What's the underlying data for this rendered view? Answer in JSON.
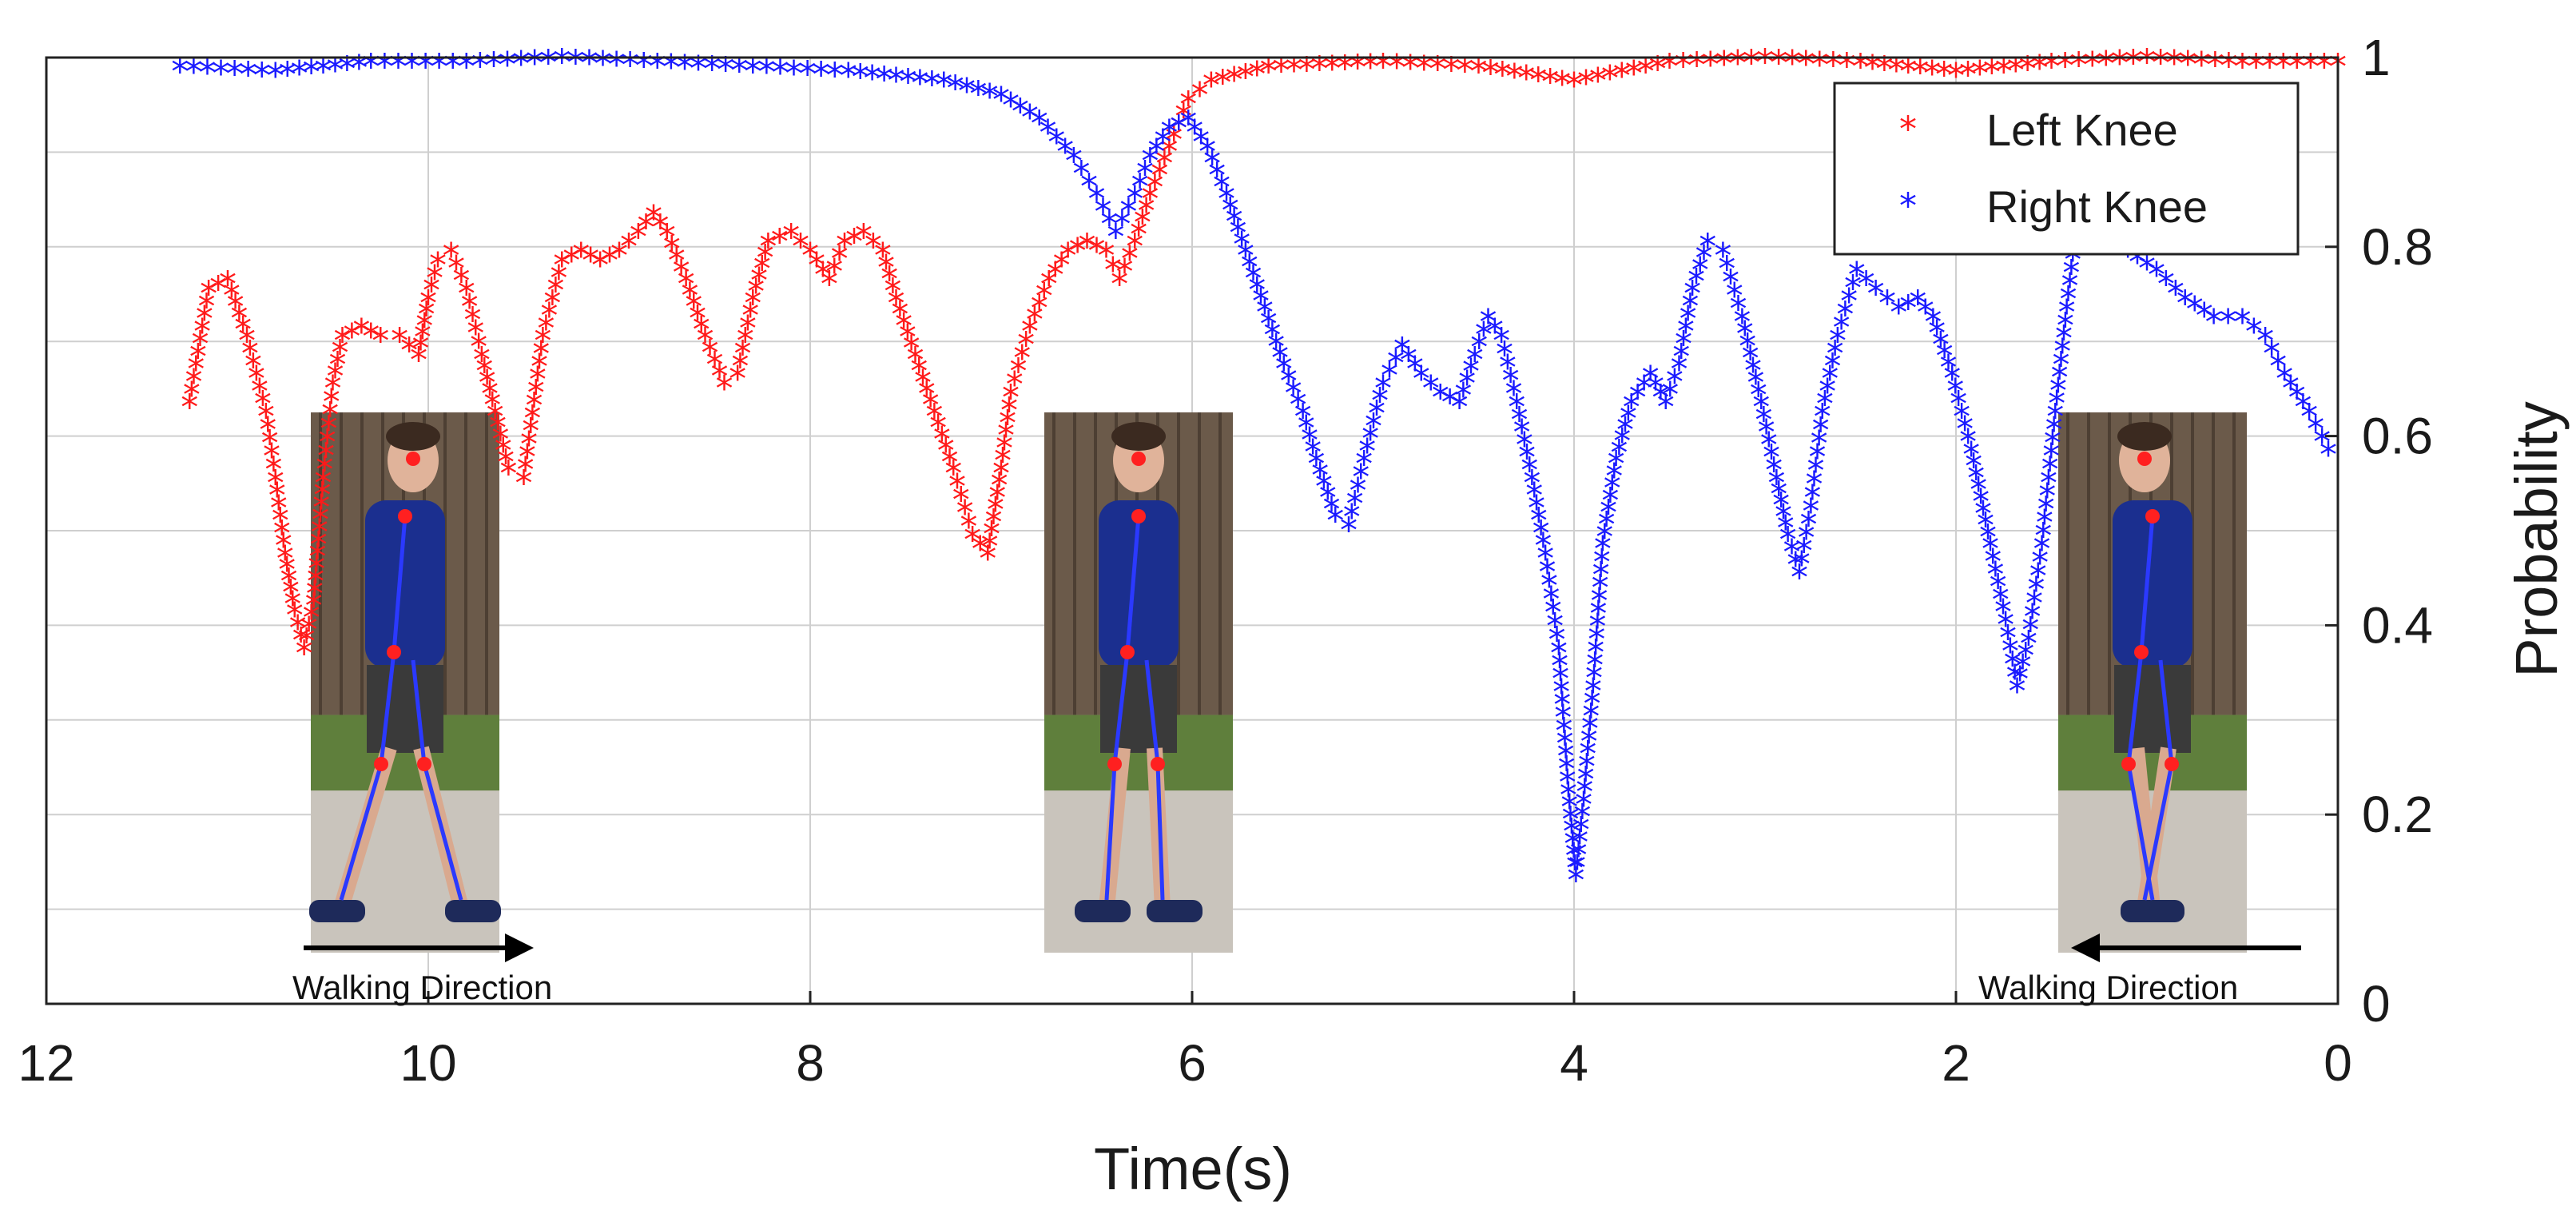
{
  "colors": {
    "left_knee": "#ff1a1a",
    "right_knee": "#1a1aff",
    "grid": "#cfcfcf",
    "axis": "#222222"
  },
  "chart_data": {
    "type": "scatter",
    "title": "",
    "xlabel": "Time(s)",
    "ylabel": "Probability",
    "xlim": [
      12,
      0
    ],
    "ylim": [
      0,
      1
    ],
    "x_reversed": true,
    "y_axis_side": "right",
    "grid": true,
    "legend_position": "top-right",
    "x_ticks": [
      12,
      10,
      8,
      6,
      4,
      2,
      0
    ],
    "y_ticks": [
      0,
      0.2,
      0.4,
      0.6,
      0.8,
      1
    ],
    "y_tick_labels": [
      "0",
      "0.2",
      "0.4",
      "0.6",
      "0.8",
      "1"
    ],
    "marker": "*",
    "series": [
      {
        "name": "Left Knee",
        "color": "#ff1a1a",
        "curve": [
          [
            11.25,
            0.63
          ],
          [
            11.15,
            0.75
          ],
          [
            11.05,
            0.76
          ],
          [
            10.95,
            0.7
          ],
          [
            10.85,
            0.62
          ],
          [
            10.8,
            0.55
          ],
          [
            10.75,
            0.47
          ],
          [
            10.7,
            0.41
          ],
          [
            10.65,
            0.37
          ],
          [
            10.6,
            0.42
          ],
          [
            10.55,
            0.55
          ],
          [
            10.5,
            0.65
          ],
          [
            10.45,
            0.7
          ],
          [
            10.35,
            0.71
          ],
          [
            10.25,
            0.7
          ],
          [
            10.15,
            0.7
          ],
          [
            10.05,
            0.68
          ],
          [
            10.0,
            0.74
          ],
          [
            9.95,
            0.78
          ],
          [
            9.88,
            0.79
          ],
          [
            9.8,
            0.75
          ],
          [
            9.72,
            0.68
          ],
          [
            9.65,
            0.62
          ],
          [
            9.58,
            0.56
          ],
          [
            9.5,
            0.55
          ],
          [
            9.4,
            0.7
          ],
          [
            9.3,
            0.78
          ],
          [
            9.2,
            0.79
          ],
          [
            9.1,
            0.78
          ],
          [
            9.0,
            0.79
          ],
          [
            8.9,
            0.81
          ],
          [
            8.82,
            0.83
          ],
          [
            8.75,
            0.81
          ],
          [
            8.65,
            0.76
          ],
          [
            8.55,
            0.7
          ],
          [
            8.45,
            0.65
          ],
          [
            8.38,
            0.66
          ],
          [
            8.3,
            0.74
          ],
          [
            8.22,
            0.8
          ],
          [
            8.1,
            0.81
          ],
          [
            8.0,
            0.79
          ],
          [
            7.9,
            0.76
          ],
          [
            7.82,
            0.8
          ],
          [
            7.72,
            0.81
          ],
          [
            7.62,
            0.79
          ],
          [
            7.55,
            0.74
          ],
          [
            7.45,
            0.68
          ],
          [
            7.35,
            0.62
          ],
          [
            7.25,
            0.56
          ],
          [
            7.15,
            0.49
          ],
          [
            7.07,
            0.47
          ],
          [
            7.0,
            0.56
          ],
          [
            6.95,
            0.64
          ],
          [
            6.85,
            0.71
          ],
          [
            6.75,
            0.76
          ],
          [
            6.65,
            0.79
          ],
          [
            6.55,
            0.8
          ],
          [
            6.45,
            0.79
          ],
          [
            6.38,
            0.76
          ],
          [
            6.3,
            0.8
          ],
          [
            6.22,
            0.85
          ],
          [
            6.12,
            0.9
          ],
          [
            6.02,
            0.95
          ],
          [
            5.9,
            0.97
          ],
          [
            5.6,
            0.985
          ],
          [
            5.0,
            0.99
          ],
          [
            4.5,
            0.985
          ],
          [
            4.0,
            0.97
          ],
          [
            3.5,
            0.99
          ],
          [
            3.0,
            0.995
          ],
          [
            2.5,
            0.99
          ],
          [
            2.0,
            0.98
          ],
          [
            1.5,
            0.99
          ],
          [
            1.0,
            0.995
          ],
          [
            0.5,
            0.99
          ],
          [
            0.0,
            0.99
          ]
        ]
      },
      {
        "name": "Right Knee",
        "color": "#1a1aff",
        "curve": [
          [
            11.3,
            0.985
          ],
          [
            10.8,
            0.98
          ],
          [
            10.3,
            0.99
          ],
          [
            9.8,
            0.99
          ],
          [
            9.3,
            0.995
          ],
          [
            8.8,
            0.99
          ],
          [
            8.3,
            0.985
          ],
          [
            7.8,
            0.98
          ],
          [
            7.3,
            0.97
          ],
          [
            7.0,
            0.955
          ],
          [
            6.8,
            0.93
          ],
          [
            6.62,
            0.89
          ],
          [
            6.5,
            0.85
          ],
          [
            6.4,
            0.81
          ],
          [
            6.3,
            0.85
          ],
          [
            6.22,
            0.89
          ],
          [
            6.12,
            0.92
          ],
          [
            6.02,
            0.93
          ],
          [
            5.92,
            0.9
          ],
          [
            5.82,
            0.85
          ],
          [
            5.72,
            0.79
          ],
          [
            5.62,
            0.73
          ],
          [
            5.52,
            0.67
          ],
          [
            5.42,
            0.62
          ],
          [
            5.35,
            0.57
          ],
          [
            5.25,
            0.51
          ],
          [
            5.18,
            0.5
          ],
          [
            5.1,
            0.57
          ],
          [
            5.0,
            0.65
          ],
          [
            4.9,
            0.69
          ],
          [
            4.8,
            0.66
          ],
          [
            4.7,
            0.64
          ],
          [
            4.6,
            0.63
          ],
          [
            4.52,
            0.68
          ],
          [
            4.45,
            0.72
          ],
          [
            4.38,
            0.7
          ],
          [
            4.3,
            0.63
          ],
          [
            4.22,
            0.55
          ],
          [
            4.15,
            0.47
          ],
          [
            4.08,
            0.37
          ],
          [
            4.03,
            0.22
          ],
          [
            3.99,
            0.13
          ],
          [
            3.95,
            0.21
          ],
          [
            3.9,
            0.33
          ],
          [
            3.85,
            0.48
          ],
          [
            3.78,
            0.57
          ],
          [
            3.7,
            0.63
          ],
          [
            3.6,
            0.66
          ],
          [
            3.52,
            0.63
          ],
          [
            3.45,
            0.67
          ],
          [
            3.38,
            0.75
          ],
          [
            3.3,
            0.8
          ],
          [
            3.22,
            0.79
          ],
          [
            3.12,
            0.72
          ],
          [
            3.02,
            0.63
          ],
          [
            2.94,
            0.55
          ],
          [
            2.88,
            0.49
          ],
          [
            2.82,
            0.45
          ],
          [
            2.76,
            0.52
          ],
          [
            2.7,
            0.62
          ],
          [
            2.62,
            0.7
          ],
          [
            2.52,
            0.77
          ],
          [
            2.42,
            0.75
          ],
          [
            2.3,
            0.73
          ],
          [
            2.2,
            0.74
          ],
          [
            2.12,
            0.72
          ],
          [
            2.02,
            0.66
          ],
          [
            1.92,
            0.58
          ],
          [
            1.82,
            0.48
          ],
          [
            1.74,
            0.4
          ],
          [
            1.68,
            0.33
          ],
          [
            1.62,
            0.38
          ],
          [
            1.55,
            0.48
          ],
          [
            1.48,
            0.62
          ],
          [
            1.42,
            0.73
          ],
          [
            1.38,
            0.8
          ],
          [
            1.25,
            0.81
          ],
          [
            1.1,
            0.79
          ],
          [
            0.95,
            0.77
          ],
          [
            0.8,
            0.74
          ],
          [
            0.65,
            0.72
          ],
          [
            0.5,
            0.72
          ],
          [
            0.38,
            0.7
          ],
          [
            0.28,
            0.66
          ],
          [
            0.15,
            0.62
          ],
          [
            0.05,
            0.58
          ]
        ]
      }
    ],
    "annotations": [
      {
        "name": "walking-direction-left",
        "text": "Walking Direction",
        "arrow": "right",
        "at_time": 10.4
      },
      {
        "name": "walking-direction-right",
        "text": "Walking Direction",
        "arrow": "left",
        "at_time": 0.9
      }
    ],
    "inset_photos": [
      {
        "name": "pedestrian-photo-left",
        "at_time": 10.4,
        "pose": "side view walking right"
      },
      {
        "name": "pedestrian-photo-middle",
        "at_time": 6.3,
        "pose": "front view"
      },
      {
        "name": "pedestrian-photo-right",
        "at_time": 0.7,
        "pose": "side view walking left"
      }
    ]
  }
}
